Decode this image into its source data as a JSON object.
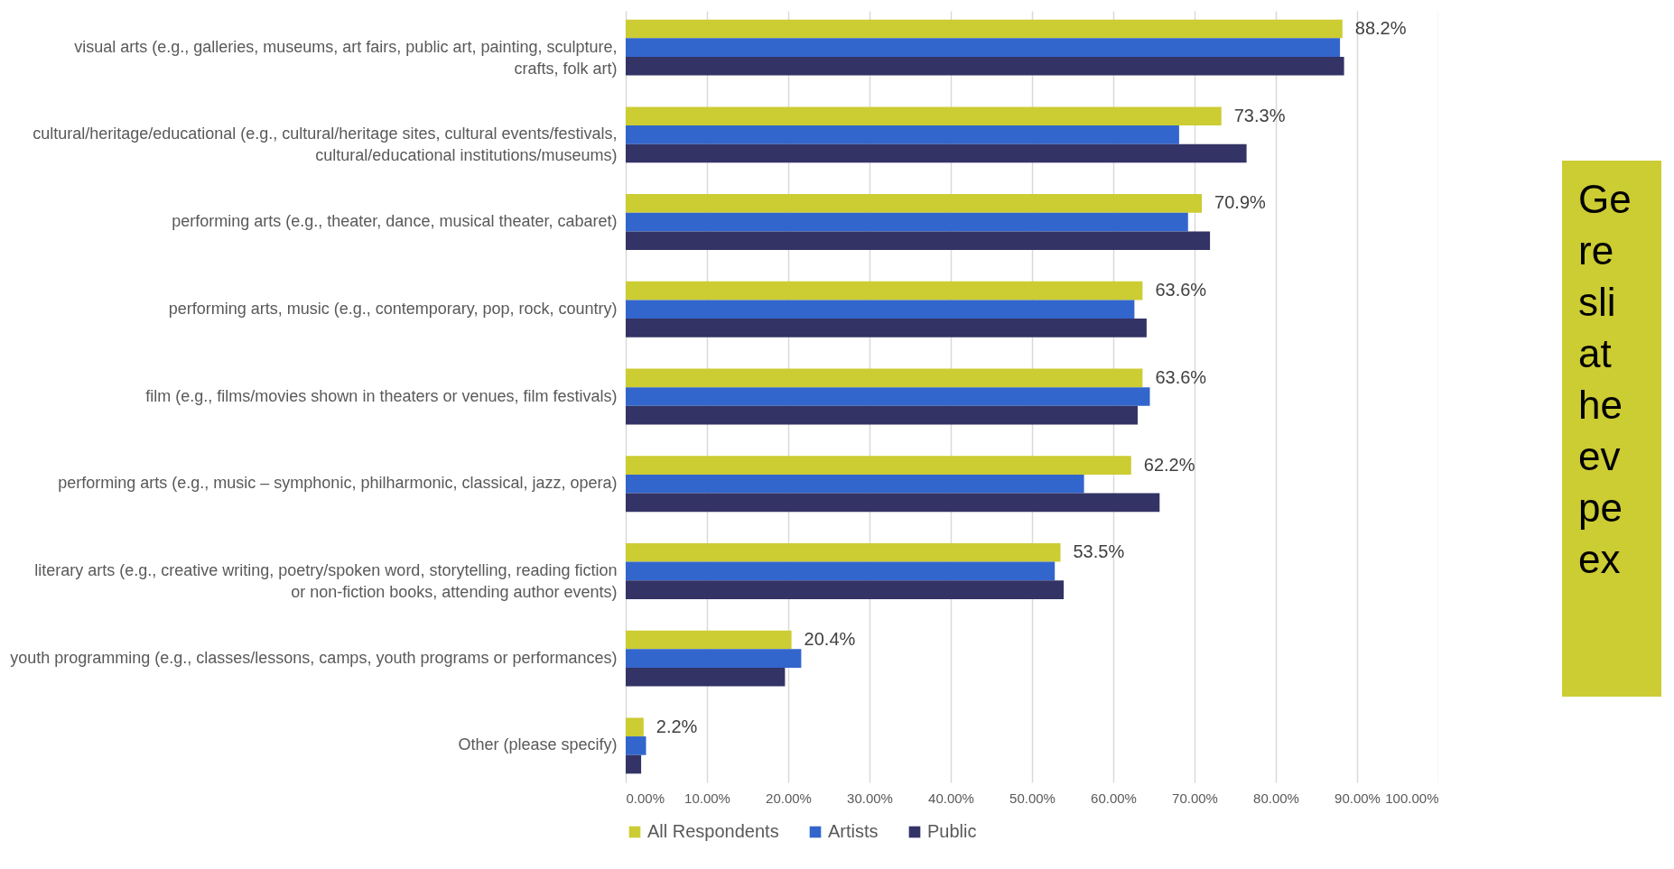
{
  "chart_data": {
    "type": "bar",
    "orientation": "horizontal",
    "categories": [
      "visual arts (e.g., galleries, museums, art fairs, public art, painting, sculpture, crafts, folk art)",
      "cultural/heritage/educational (e.g., cultural/heritage sites, cultural events/festivals, cultural/educational institutions/museums)",
      "performing arts (e.g., theater, dance, musical theater, cabaret)",
      "performing arts, music (e.g., contemporary, pop, rock, country)",
      "film (e.g., films/movies shown in theaters or venues, film festivals)",
      "performing arts (e.g., music – symphonic, philharmonic, classical, jazz, opera)",
      "literary arts (e.g., creative writing, poetry/spoken word, storytelling, reading fiction or non-fiction books, attending author events)",
      "youth programming (e.g., classes/lessons, camps, youth programs or performances)",
      "Other (please specify)"
    ],
    "series": [
      {
        "name": "All Respondents",
        "color": "#cccc33",
        "values": [
          88.2,
          73.3,
          70.9,
          63.6,
          63.6,
          62.2,
          53.5,
          20.4,
          2.2
        ],
        "value_labels": [
          "88.2%",
          "73.3%",
          "70.9%",
          "63.6%",
          "63.6%",
          "62.2%",
          "53.5%",
          "20.4%",
          "2.2%"
        ]
      },
      {
        "name": "Artists",
        "color": "#3366cc",
        "values": [
          87.9,
          68.1,
          69.2,
          62.6,
          64.5,
          56.4,
          52.8,
          21.6,
          2.5
        ]
      },
      {
        "name": "Public",
        "color": "#333366",
        "values": [
          88.4,
          76.4,
          71.9,
          64.1,
          63.0,
          65.7,
          53.9,
          19.6,
          1.9
        ]
      }
    ],
    "xlim": [
      0,
      100
    ],
    "xticks": [
      {
        "value": 0,
        "label": "0.00%"
      },
      {
        "value": 10,
        "label": "10.00%"
      },
      {
        "value": 20,
        "label": "20.00%"
      },
      {
        "value": 30,
        "label": "30.00%"
      },
      {
        "value": 40,
        "label": "40.00%"
      },
      {
        "value": 50,
        "label": "50.00%"
      },
      {
        "value": 60,
        "label": "60.00%"
      },
      {
        "value": 70,
        "label": "70.00%"
      },
      {
        "value": 80,
        "label": "80.00%"
      },
      {
        "value": 90,
        "label": "90.00%"
      },
      {
        "value": 100,
        "label": "100.00%"
      }
    ],
    "grid": "x",
    "legend": "bottom",
    "annotations": [
      "Ge\nre\nsli\nat\nhe\nev\npe\nex"
    ]
  }
}
